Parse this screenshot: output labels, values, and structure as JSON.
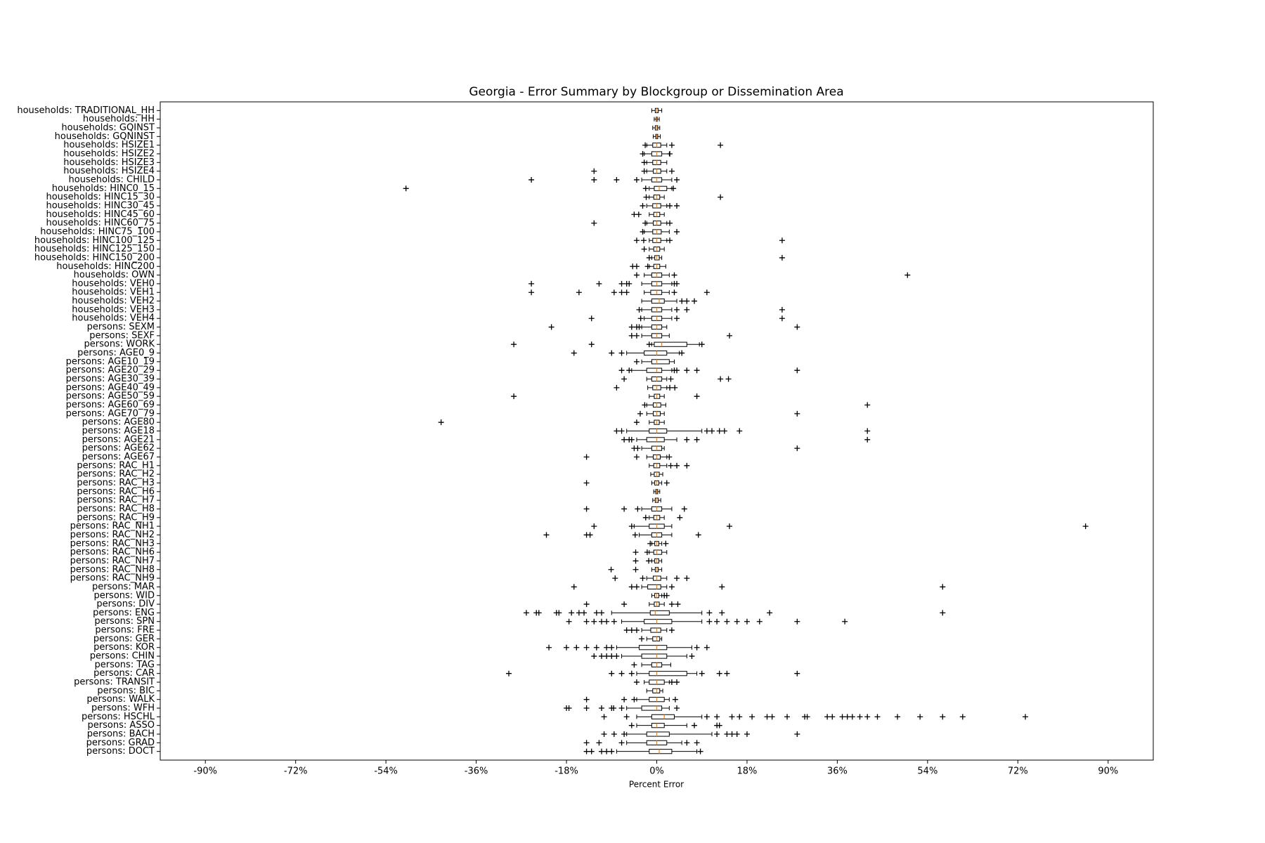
{
  "chart_data": {
    "type": "boxplot",
    "title": "Georgia - Error Summary by Blockgroup or Dissemination Area",
    "xlabel": "Percent Error",
    "xlim": [
      -99,
      99
    ],
    "xticks": [
      {
        "value": -90,
        "label": "-90%"
      },
      {
        "value": -72,
        "label": "-72%"
      },
      {
        "value": -54,
        "label": "-54%"
      },
      {
        "value": -36,
        "label": "-36%"
      },
      {
        "value": -18,
        "label": "-18%"
      },
      {
        "value": 0,
        "label": "0%"
      },
      {
        "value": 18,
        "label": "18%"
      },
      {
        "value": 36,
        "label": "36%"
      },
      {
        "value": 54,
        "label": "54%"
      },
      {
        "value": 72,
        "label": "72%"
      },
      {
        "value": 90,
        "label": "90%"
      }
    ],
    "box_color": "#000000",
    "median_color": "#ff7f0e",
    "categories": [
      "households: TRADITIONAL_HH",
      "households: HH",
      "households: GQINST",
      "households: GQNINST",
      "households: HSIZE1",
      "households: HSIZE2",
      "households: HSIZE3",
      "households: HSIZE4",
      "households: CHILD",
      "households: HINC0_15",
      "households: HINC15_30",
      "households: HINC30_45",
      "households: HINC45_60",
      "households: HINC60_75",
      "households: HINC75_100",
      "households: HINC100_125",
      "households: HINC125_150",
      "households: HINC150_200",
      "households: HINC200",
      "households: OWN",
      "households: VEH0",
      "households: VEH1",
      "households: VEH2",
      "households: VEH3",
      "households: VEH4",
      "persons: SEXM",
      "persons: SEXF",
      "persons: WORK",
      "persons: AGE0_9",
      "persons: AGE10_19",
      "persons: AGE20_29",
      "persons: AGE30_39",
      "persons: AGE40_49",
      "persons: AGE50_59",
      "persons: AGE60_69",
      "persons: AGE70_79",
      "persons: AGE80",
      "persons: AGE18",
      "persons: AGE21",
      "persons: AGE62",
      "persons: AGE67",
      "persons: RAC_H1",
      "persons: RAC_H2",
      "persons: RAC_H3",
      "persons: RAC_H6",
      "persons: RAC_H7",
      "persons: RAC_H8",
      "persons: RAC_H9",
      "persons: RAC_NH1",
      "persons: RAC_NH2",
      "persons: RAC_NH3",
      "persons: RAC_NH6",
      "persons: RAC_NH7",
      "persons: RAC_NH8",
      "persons: RAC_NH9",
      "persons: MAR",
      "persons: WID",
      "persons: DIV",
      "persons: ENG",
      "persons: SPN",
      "persons: FRE",
      "persons: GER",
      "persons: KOR",
      "persons: CHIN",
      "persons: TAG",
      "persons: CAR",
      "persons: TRANSIT",
      "persons: BIC",
      "persons: WALK",
      "persons: WFH",
      "persons: HSCHL",
      "persons: ASSO",
      "persons: BACH",
      "persons: GRAD",
      "persons: DOCT"
    ],
    "whislo": [
      -1,
      -0.5,
      -0.8,
      -0.7,
      -2,
      -2.5,
      -2,
      -2,
      -3,
      -1.5,
      -1.5,
      -2,
      -1.5,
      -2,
      -2.5,
      -1.5,
      -1.5,
      -1,
      -1.5,
      -2.5,
      -3,
      -2.5,
      -3,
      -3,
      -2.5,
      -3,
      -3,
      -1,
      -6,
      -3,
      -5,
      -2,
      -1.8,
      -1.5,
      -2,
      -2,
      -1.5,
      -6,
      -4,
      -3,
      -2,
      -1.5,
      -1.2,
      -1,
      -0.6,
      -0.8,
      -3,
      -1.5,
      -4.5,
      -3.5,
      -1,
      -1.5,
      -1,
      -1,
      -2,
      -3,
      -1,
      -1.5,
      -9,
      -7,
      -3,
      -2,
      -8,
      -7,
      -3,
      -4,
      -2.5,
      -2,
      -4,
      -6,
      -4,
      -4,
      -6,
      -6,
      -8
    ],
    "q1": [
      -0.3,
      -0.1,
      -0.3,
      -0.2,
      -0.8,
      -1,
      -0.8,
      -0.7,
      -1,
      -0.5,
      -0.6,
      -0.8,
      -0.6,
      -0.7,
      -0.8,
      -0.8,
      -0.6,
      -0.4,
      -0.6,
      -1,
      -1,
      -1.2,
      -1,
      -1,
      -1,
      -1,
      -1,
      -0.5,
      -2.5,
      -1,
      -2,
      -1,
      -0.8,
      -0.5,
      -0.7,
      -0.7,
      -0.5,
      -1.5,
      -2,
      -1,
      -0.7,
      -0.6,
      -0.5,
      -0.4,
      -0.2,
      -0.3,
      -1,
      -0.6,
      -1.5,
      -1,
      -0.4,
      -0.6,
      -0.4,
      -0.3,
      -0.7,
      -1.8,
      -0.4,
      -0.5,
      -1.3,
      -2.5,
      -1.2,
      -0.8,
      -3.5,
      -3,
      -1,
      -1.5,
      -1.5,
      -0.8,
      -1.5,
      -3,
      -1,
      -1,
      -2,
      -2,
      -1.5
    ],
    "median": [
      0,
      0,
      0,
      0,
      0,
      0,
      0,
      0,
      0,
      0.5,
      0,
      0,
      0,
      0,
      0,
      0,
      0,
      0,
      0,
      0,
      0,
      0,
      0.5,
      0,
      0,
      0,
      0,
      1,
      0,
      0,
      0,
      0,
      0,
      0,
      0,
      0,
      0,
      0,
      0,
      0,
      0,
      0,
      0,
      0,
      0,
      0,
      0,
      0,
      0,
      0,
      0,
      0,
      0,
      0,
      0,
      0,
      0,
      0,
      -0.3,
      0,
      0,
      0,
      0,
      0,
      0,
      0,
      0,
      0,
      0,
      0,
      1.5,
      0,
      0,
      0,
      0.5
    ],
    "q3": [
      0.3,
      0.1,
      0.2,
      0.2,
      0.8,
      1,
      0.8,
      0.8,
      1,
      2,
      0.6,
      0.8,
      0.6,
      0.8,
      0.9,
      0.8,
      0.6,
      0.5,
      0.6,
      1,
      1,
      1,
      1.5,
      1,
      1,
      1,
      1,
      6,
      2,
      2.5,
      1,
      1,
      0.8,
      0.6,
      0.8,
      0.7,
      0.5,
      2,
      1.5,
      1,
      0.7,
      0.6,
      0.5,
      0.4,
      0.2,
      0.3,
      1,
      0.6,
      1.5,
      1,
      0.4,
      1,
      0.4,
      0.3,
      0.8,
      0.8,
      0.4,
      0.5,
      2.5,
      3,
      0.8,
      0.6,
      2,
      2,
      1,
      6,
      1.5,
      0.6,
      1.5,
      1,
      3.5,
      1.5,
      2.5,
      2,
      3
    ],
    "whishi": [
      1,
      0.5,
      0.6,
      0.7,
      2,
      2.5,
      2,
      2,
      3,
      3,
      1.5,
      2,
      1.5,
      2,
      2.5,
      2,
      1.5,
      1,
      1.8,
      2.5,
      3,
      2.5,
      4,
      3,
      3,
      2,
      2.5,
      8.5,
      4.5,
      3.5,
      3,
      2,
      2,
      1.5,
      1.8,
      1.5,
      1.5,
      9,
      4,
      1.5,
      2,
      2,
      1.2,
      1,
      0.6,
      0.8,
      3,
      1.5,
      3,
      3,
      1,
      2,
      1,
      1,
      2,
      2,
      1,
      1.5,
      9,
      9,
      2,
      1,
      7,
      6,
      2.8,
      8,
      2.5,
      1.2,
      2.5,
      2.5,
      9,
      6,
      11,
      5,
      8
    ],
    "fliers": [
      [],
      [],
      [],
      [],
      [
        -2.3,
        3,
        12.7
      ],
      [
        -2.8,
        2.6
      ],
      [
        -2.5
      ],
      [
        -12.5,
        -2.5,
        3
      ],
      [
        -25,
        -12.5,
        -8,
        -4,
        4
      ],
      [
        -50,
        -2.2,
        3.3
      ],
      [
        -2.1,
        12.7
      ],
      [
        -2.8,
        2.6,
        4
      ],
      [
        -4.5,
        -3.6
      ],
      [
        -12.5,
        -2.3,
        2.6
      ],
      [
        -2.8,
        4
      ],
      [
        -4,
        -2.6,
        2.6,
        25
      ],
      [
        -2.5
      ],
      [
        -1.5,
        25
      ],
      [
        -4.8,
        -4,
        -1.8
      ],
      [
        -4,
        3.5,
        50
      ],
      [
        -25,
        -11.5,
        -7,
        -6,
        -5.5,
        3.5,
        4
      ],
      [
        -25,
        -15.5,
        -8.5,
        -7,
        -6,
        3.5,
        10
      ],
      [
        5,
        6,
        7.5
      ],
      [
        -3.5,
        4,
        6,
        25
      ],
      [
        -13,
        -3.2,
        4,
        25
      ],
      [
        -21,
        -5,
        -4,
        -3.5,
        28
      ],
      [
        -5,
        -4,
        14.5
      ],
      [
        -28.5,
        -13,
        -1.5,
        9
      ],
      [
        -16.5,
        -9,
        -7,
        5
      ],
      [
        -4
      ],
      [
        -7,
        -5.5,
        3.5,
        4,
        6,
        8,
        28
      ],
      [
        -6.5,
        2.8,
        12.7,
        14.3
      ],
      [
        -8,
        2.6,
        3.6
      ],
      [
        -28.5,
        8
      ],
      [
        -2.4,
        42
      ],
      [
        -3.3,
        28
      ],
      [
        -43,
        -4
      ],
      [
        -8,
        -7,
        10,
        11,
        12.5,
        13.5,
        16.5,
        42
      ],
      [
        -6.5,
        -5.5,
        -5,
        6,
        8,
        42
      ],
      [
        -4.5,
        -3.8,
        28
      ],
      [
        -14,
        -4,
        2.5
      ],
      [
        2.8,
        4,
        6
      ],
      [],
      [
        -14,
        2
      ],
      [],
      [],
      [
        -14,
        -6.5,
        -3.8,
        5.5
      ],
      [
        -2.2,
        4.6
      ],
      [
        -12.5,
        -5,
        14.5,
        85.5
      ],
      [
        -22,
        -14,
        -13.3,
        -4.3,
        8.3
      ],
      [
        -1.3,
        1.8
      ],
      [
        -4.2,
        -1.9
      ],
      [
        -4.2,
        -1.6
      ],
      [
        -9.1,
        -4.2
      ],
      [
        -8.3,
        -2.8,
        4,
        6
      ],
      [
        -16.5,
        -5,
        -4,
        3,
        13,
        57
      ],
      [
        1.5,
        2
      ],
      [
        -14,
        -6.5,
        3,
        4.2
      ],
      [
        -26,
        -24,
        -23.5,
        -20,
        -19.5,
        -17,
        -15.5,
        -14.5,
        -12,
        -11,
        10.5,
        13,
        22.5,
        57
      ],
      [
        -17.5,
        -14,
        -12.5,
        -11,
        -10,
        -8.5,
        10.5,
        12,
        14,
        16,
        18,
        20.5,
        28,
        37.5
      ],
      [
        -6,
        -5,
        -4,
        3
      ],
      [
        -3
      ],
      [
        -21.5,
        -18,
        -16,
        -14,
        -12,
        -10,
        -9,
        8,
        10
      ],
      [
        -12.5,
        -11,
        -10,
        -9,
        -8,
        7
      ],
      [
        -4.5
      ],
      [
        -29.5,
        -9,
        -7,
        -5,
        9,
        12.5,
        14,
        28
      ],
      [
        -4,
        3,
        4
      ],
      [],
      [
        -14,
        -6.5,
        -4.5,
        3.7
      ],
      [
        -18,
        -17.5,
        -14,
        -11,
        -9,
        -8.6,
        -7,
        4
      ],
      [
        -10.5,
        -6,
        10,
        12,
        15,
        16.5,
        19,
        22,
        23,
        26,
        29.5,
        30,
        34,
        35,
        37,
        38,
        39,
        40.5,
        42,
        44,
        48,
        52.5,
        57,
        61,
        73.5
      ],
      [
        -5,
        7.5,
        12,
        12.5
      ],
      [
        -10.5,
        -8.5,
        -6.5,
        12,
        14,
        15,
        16,
        18,
        28
      ],
      [
        -14,
        -11.5,
        -7,
        6,
        8
      ],
      [
        -14,
        -13,
        -11,
        -10,
        -9,
        8.7
      ]
    ]
  }
}
